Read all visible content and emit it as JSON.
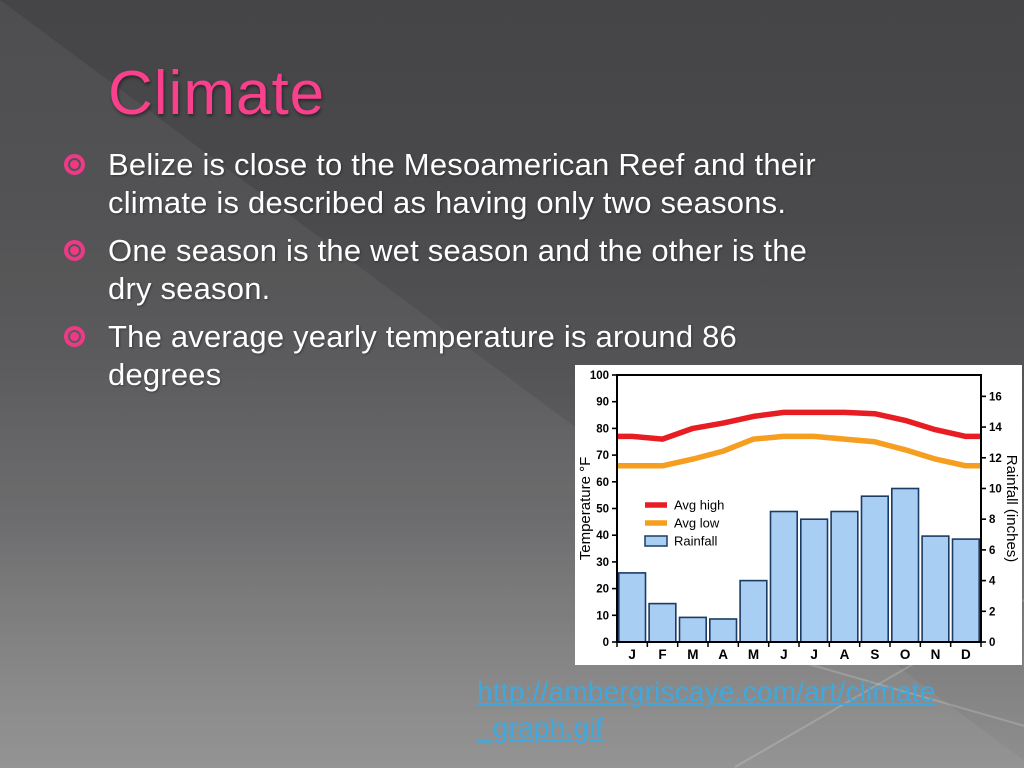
{
  "slide": {
    "title": "Climate",
    "bullets": [
      {
        "lines": [
          "Belize is close to the Mesoamerican Reef and their",
          "climate is described as having only two seasons."
        ]
      },
      {
        "lines": [
          "One season is the wet season and the other is the",
          "dry season."
        ]
      },
      {
        "lines": [
          "The average yearly temperature is around 86",
          "degrees"
        ]
      }
    ],
    "source_link": {
      "lines": [
        "http://ambergriscaye.com/art/climate",
        "_graph.gif"
      ],
      "url": "http://ambergriscaye.com/art/climate_graph.gif"
    }
  },
  "colors": {
    "title_pink": "#f9408c",
    "bullet_pink": "#ee3a86",
    "body_text": "#ffffff",
    "link_blue": "#3fa8df",
    "chart_bg": "#ffffff",
    "axis_black": "#000000"
  },
  "chart_data": {
    "type": "combo",
    "categories": [
      "J",
      "F",
      "M",
      "A",
      "M",
      "J",
      "J",
      "A",
      "S",
      "O",
      "N",
      "D"
    ],
    "series": [
      {
        "name": "Avg high",
        "type": "line",
        "axis": "left",
        "color": "#e81c23",
        "values": [
          77,
          76,
          80,
          82,
          84.5,
          86,
          86,
          86,
          85.5,
          83,
          79.5,
          77
        ]
      },
      {
        "name": "Avg low",
        "type": "line",
        "axis": "left",
        "color": "#f59e1f",
        "values": [
          66,
          66,
          68.5,
          71.5,
          76,
          77,
          77,
          76,
          75,
          72,
          68.5,
          66
        ]
      },
      {
        "name": "Rainfall",
        "type": "bar",
        "axis": "right",
        "color": "#a8cef4",
        "border_color": "#1c3b63",
        "values": [
          4.5,
          2.5,
          1.6,
          1.5,
          4.0,
          8.5,
          8.0,
          8.5,
          9.5,
          10.0,
          6.9,
          6.7
        ]
      }
    ],
    "left_axis": {
      "label": "Temperature °F",
      "min": 0,
      "max": 100,
      "tick_step": 10
    },
    "right_axis": {
      "label": "Rainfall (inches)",
      "min": 0,
      "max": 16,
      "tick_step": 2
    },
    "legend_position": "middle-left",
    "grid": false
  }
}
